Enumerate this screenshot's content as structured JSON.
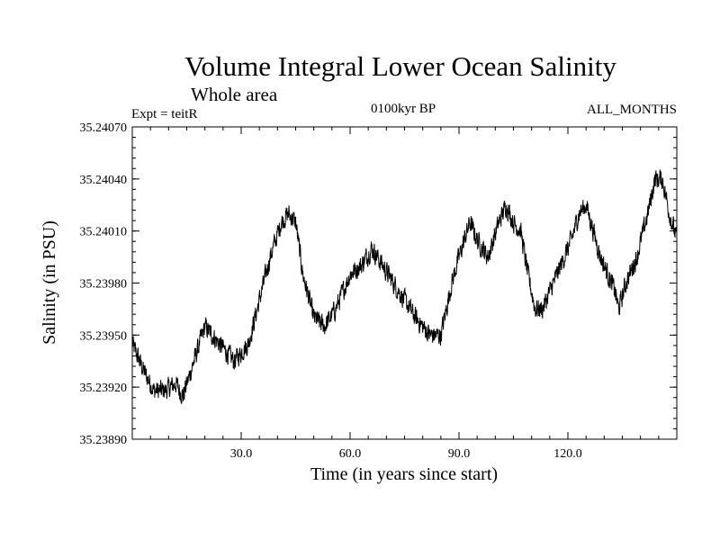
{
  "chart_data": {
    "type": "line",
    "title": "Volume Integral Lower Ocean Salinity",
    "subtitle": "Whole area",
    "experiment_label": "Expt = teitR",
    "period_label": "0100kyr BP",
    "months_label": "ALL_MONTHS",
    "xlabel": "Time (in years since start)",
    "ylabel": "Salinity (in PSU)",
    "xlim": [
      0,
      150
    ],
    "ylim": [
      35.2389,
      35.2407
    ],
    "x_ticks": [
      30,
      60,
      90,
      120
    ],
    "x_tick_labels": [
      "30.0",
      "60.0",
      "90.0",
      "120.0"
    ],
    "y_ticks": [
      35.2389,
      35.2392,
      35.2395,
      35.2398,
      35.2401,
      35.2404,
      35.2407
    ],
    "y_tick_labels": [
      "35.23890",
      "35.23920",
      "35.23950",
      "35.23980",
      "35.24010",
      "35.24040",
      "35.24070"
    ],
    "grid": false,
    "series": [
      {
        "name": "Salinity",
        "color": "#000000",
        "x": [
          0,
          3,
          6,
          9,
          12,
          14,
          17,
          20,
          24,
          28,
          32,
          35,
          38,
          41,
          43,
          45,
          47,
          50,
          53,
          56,
          60,
          63,
          66,
          69,
          72,
          75,
          78,
          82,
          85,
          88,
          90,
          93,
          95,
          98,
          101,
          103,
          105,
          107,
          109,
          111,
          113,
          115,
          118,
          121,
          123,
          125,
          127,
          129,
          131,
          133,
          134,
          136,
          139,
          142,
          144,
          146,
          148,
          150
        ],
        "values": [
          35.23945,
          35.2393,
          35.23918,
          35.23918,
          35.23922,
          35.23915,
          35.23935,
          35.23955,
          35.23945,
          35.23935,
          35.23945,
          35.2397,
          35.23995,
          35.24015,
          35.2402,
          35.24015,
          35.23985,
          35.2396,
          35.23955,
          35.23965,
          35.23985,
          35.2399,
          35.24,
          35.2399,
          35.2398,
          35.2397,
          35.2396,
          35.2395,
          35.2395,
          35.2398,
          35.23995,
          35.24015,
          35.24005,
          35.23995,
          35.24015,
          35.24025,
          35.24015,
          35.2401,
          35.23985,
          35.23965,
          35.23965,
          35.23975,
          35.2399,
          35.24005,
          35.2402,
          35.24025,
          35.2401,
          35.23995,
          35.23985,
          35.23975,
          35.23965,
          35.2398,
          35.23995,
          35.2402,
          35.2404,
          35.2404,
          35.2402,
          35.24005
        ]
      }
    ]
  }
}
